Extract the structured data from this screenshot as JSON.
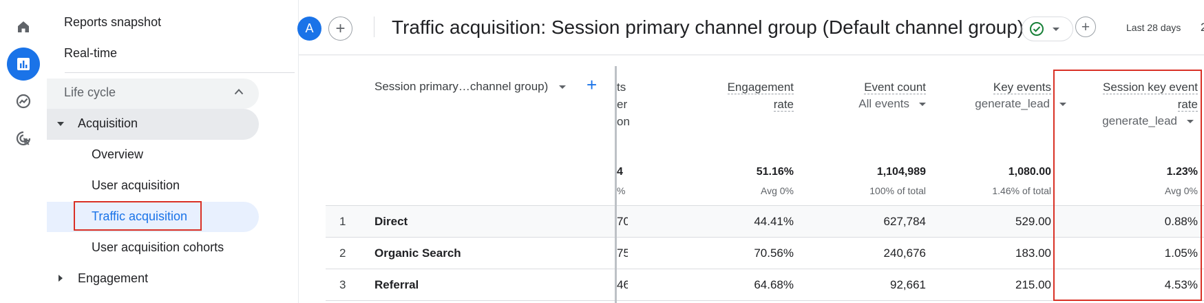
{
  "rail": {
    "icons": [
      "home-icon",
      "reports-bar-chart-icon",
      "explore-trend-icon",
      "advertising-cursor-icon"
    ],
    "active_color": "#1a73e8"
  },
  "nav": {
    "reports_snapshot": "Reports snapshot",
    "realtime": "Real-time",
    "lifecycle": "Life cycle",
    "acquisition": "Acquisition",
    "overview": "Overview",
    "user_acquisition": "User acquisition",
    "traffic_acquisition": "Traffic acquisition",
    "user_acquisition_cohorts": "User acquisition cohorts",
    "engagement": "Engagement",
    "selected_color": "#1a73e8"
  },
  "header": {
    "avatar_letter": "A",
    "title": "Traffic acquisition: Session primary channel group (Default channel group)",
    "date_range": "Last 28 days",
    "date_range_more": "2"
  },
  "table": {
    "dimension_header": "Session primary…channel group)",
    "partial_col": {
      "header_lines": [
        "ts",
        "er",
        "on"
      ],
      "total": "4",
      "total_sub": "%",
      "rows": [
        "70",
        "75",
        "46"
      ]
    },
    "columns": [
      {
        "title_lines": [
          "Engagement",
          "rate"
        ],
        "subtitle": "",
        "total": "51.16%",
        "total_sub": "Avg 0%"
      },
      {
        "title_lines": [
          "Event count"
        ],
        "subtitle": "All events",
        "total": "1,104,989",
        "total_sub": "100% of total"
      },
      {
        "title_lines": [
          "Key events"
        ],
        "subtitle": "generate_lead",
        "total": "1,080.00",
        "total_sub": "1.46% of total"
      },
      {
        "title_lines": [
          "Session key event",
          "rate"
        ],
        "subtitle": "generate_lead",
        "total": "1.23%",
        "total_sub": "Avg 0%"
      }
    ],
    "rows": [
      {
        "num": "1",
        "name": "Direct",
        "values": [
          "44.41%",
          "627,784",
          "529.00",
          "0.88%"
        ]
      },
      {
        "num": "2",
        "name": "Organic Search",
        "values": [
          "70.56%",
          "240,676",
          "183.00",
          "1.05%"
        ]
      },
      {
        "num": "3",
        "name": "Referral",
        "values": [
          "64.68%",
          "92,661",
          "215.00",
          "4.53%"
        ]
      }
    ],
    "highlight_color": "#d93025"
  }
}
